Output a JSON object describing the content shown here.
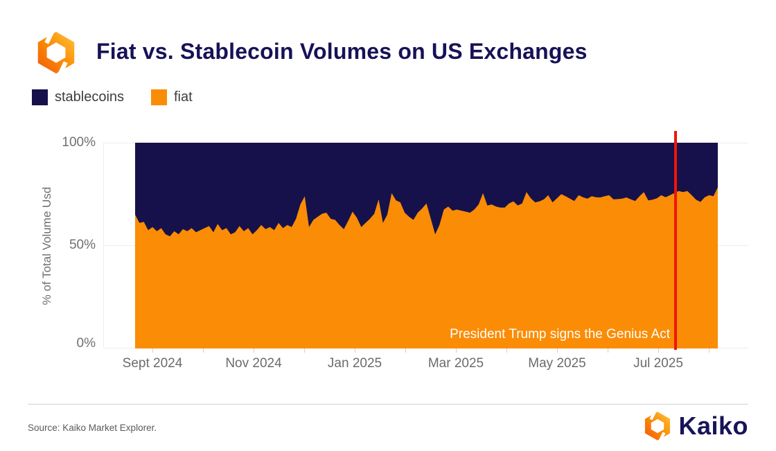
{
  "header": {
    "title": "Fiat vs. Stablecoin Volumes on US Exchanges",
    "title_color": "#171256"
  },
  "legend": {
    "items": [
      {
        "label": "stablecoins"
      },
      {
        "label": "fiat"
      }
    ]
  },
  "chart_data": {
    "type": "area",
    "stacking": "percent",
    "title": "Fiat vs. Stablecoin Volumes on US Exchanges",
    "xlabel": "",
    "ylabel": "% of Total Volume Usd",
    "ylim": [
      0,
      100
    ],
    "yticks": [
      "100%",
      "50%",
      "0%"
    ],
    "xtick_labels": [
      "Sept 2024",
      "Nov 2024",
      "Jan 2025",
      "Mar 2025",
      "May 2025",
      "Jul 2025"
    ],
    "x_range": {
      "start": "2024-08-28",
      "end": "2025-08-06",
      "points_evenly_spaced": true,
      "n_points": 135
    },
    "grid": "light horizontal lines at 0%, 50%, 100%",
    "legend_position": "top-left above plot",
    "series": [
      {
        "name": "fiat",
        "color": "#FB8C05",
        "unit": "% of total volume USD",
        "values": [
          65,
          61,
          61.5,
          57.5,
          59,
          57,
          58.5,
          55.5,
          54.5,
          57,
          55.5,
          58,
          57,
          58.5,
          56.5,
          57.5,
          58.5,
          59.5,
          56.5,
          60.5,
          57.5,
          58.5,
          55.5,
          56.5,
          59.5,
          57,
          58.5,
          55.5,
          57.5,
          60,
          58,
          59,
          57.5,
          61,
          58.5,
          60,
          59,
          63,
          70,
          74,
          59,
          62.5,
          64,
          65.5,
          66,
          63,
          62.5,
          60,
          58,
          62,
          66.5,
          63.5,
          59,
          61,
          63,
          65.5,
          72.5,
          61,
          65,
          75.5,
          72,
          71,
          66,
          64,
          62.5,
          66,
          68,
          70.5,
          63,
          55.5,
          60,
          67.5,
          69,
          67,
          67.5,
          67,
          66.5,
          66,
          67.5,
          70,
          75.5,
          69.5,
          70,
          69,
          68.5,
          68.5,
          70.5,
          71.5,
          69.5,
          70.5,
          76,
          73,
          71,
          71.5,
          72.5,
          74.5,
          71,
          73,
          75,
          74,
          72.8,
          71.7,
          74.5,
          73.5,
          72.8,
          74,
          73.5,
          73.4,
          74,
          74.5,
          72.5,
          72.6,
          72.8,
          73.4,
          72.5,
          71.7,
          74,
          76,
          72,
          72.3,
          73,
          74.5,
          73.5,
          74.5,
          75.5,
          76.5,
          76,
          76.5,
          74.5,
          72.3,
          71.2,
          73.5,
          74.5,
          74,
          78.3
        ]
      },
      {
        "name": "stablecoins",
        "color": "#16114B",
        "unit": "% of total volume USD",
        "derivation": "100 minus fiat (stacked to 100%)"
      }
    ],
    "annotation": {
      "text": "President Trump signs the Genius Act",
      "text_color": "#FFFFFF",
      "line_color": "#F01505",
      "line_x_fraction_of_data": 0.9275
    }
  },
  "footer": {
    "source": "Source: Kaiko Market Explorer.",
    "brand": "Kaiko",
    "brand_color": "#171458",
    "brand_orange": "#FB8C05"
  }
}
